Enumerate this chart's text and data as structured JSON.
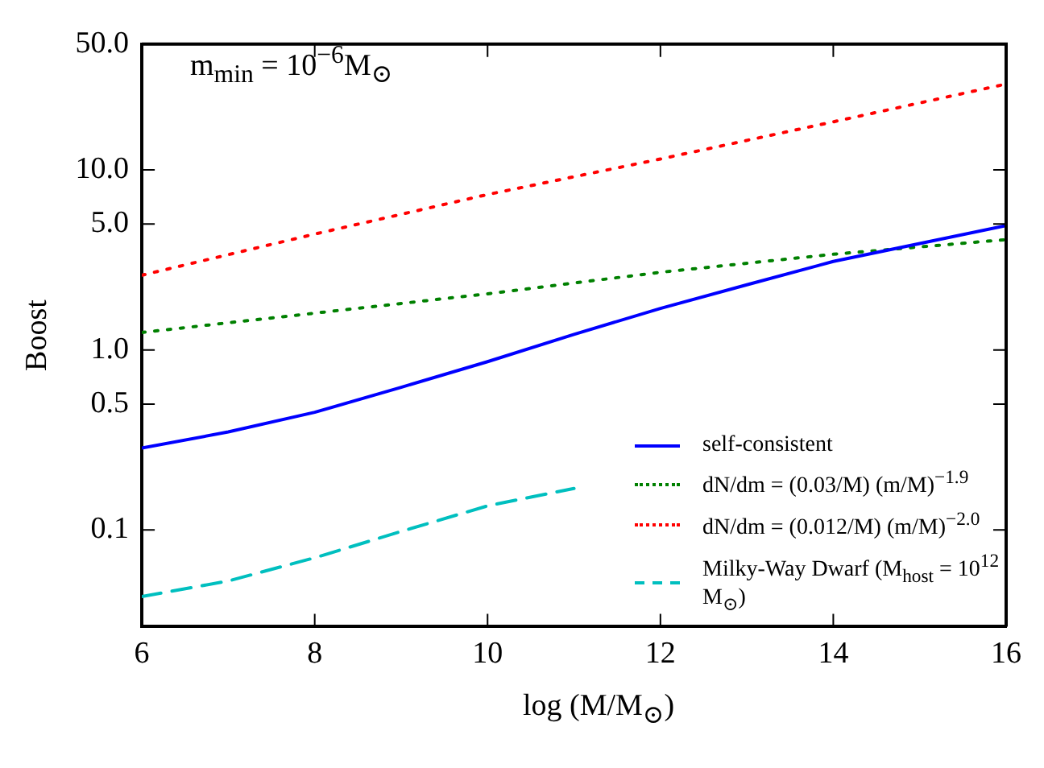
{
  "chart_data": {
    "type": "line",
    "xlabel": "log (M/M$_{⊙}$)",
    "ylabel": "Boost",
    "annotations": [
      "m$_{min}$ = 10$^{−6}$M$_{⊙}$"
    ],
    "log": "y",
    "xlim": [
      6,
      16
    ],
    "xticks": [
      6,
      8,
      10,
      12,
      14,
      16
    ],
    "ylim": [
      0.029,
      50
    ],
    "yticks": [
      {
        "value": 0.1,
        "label": "0.1"
      },
      {
        "value": 0.5,
        "label": "0.5"
      },
      {
        "value": 1,
        "label": "1.0"
      },
      {
        "value": 5,
        "label": "5.0"
      },
      {
        "value": 10,
        "label": "10.0"
      },
      {
        "value": 50,
        "label": "50.0"
      }
    ],
    "grid": false,
    "legend": "bottom right",
    "marker": "none",
    "series": [
      {
        "name": "self-consistent",
        "color": "#0000ff",
        "line_style": "solid",
        "x": [
          6,
          7,
          8,
          9,
          10,
          11,
          12,
          13,
          14,
          15,
          16
        ],
        "values": [
          0.285,
          0.35,
          0.45,
          0.62,
          0.86,
          1.22,
          1.7,
          2.3,
          3.1,
          3.9,
          4.9
        ]
      },
      {
        "name": "dN/dm = (0.03/M) (m/M)$^{−1.9}$",
        "color": "#008000",
        "line_style": "dotted",
        "x": [
          6,
          8,
          10,
          12,
          14,
          16
        ],
        "values": [
          1.25,
          1.6,
          2.05,
          2.7,
          3.4,
          4.1
        ]
      },
      {
        "name": "dN/dm = (0.012/M) (m/M)$^{−2.0}$",
        "color": "#ff0000",
        "line_style": "dotted",
        "x": [
          6,
          8,
          10,
          12,
          14,
          16
        ],
        "values": [
          2.6,
          4.4,
          7.3,
          11.5,
          18.5,
          30
        ]
      },
      {
        "name": "Milky-Way Dwarf (M$_{host}$ = 10$^{12}$ M$_{⊙}$)",
        "color": "#00bfbf",
        "line_style": "dashed",
        "x": [
          6,
          7,
          8,
          9,
          10,
          11
        ],
        "values": [
          0.0426,
          0.052,
          0.07,
          0.098,
          0.136,
          0.17
        ]
      }
    ]
  }
}
